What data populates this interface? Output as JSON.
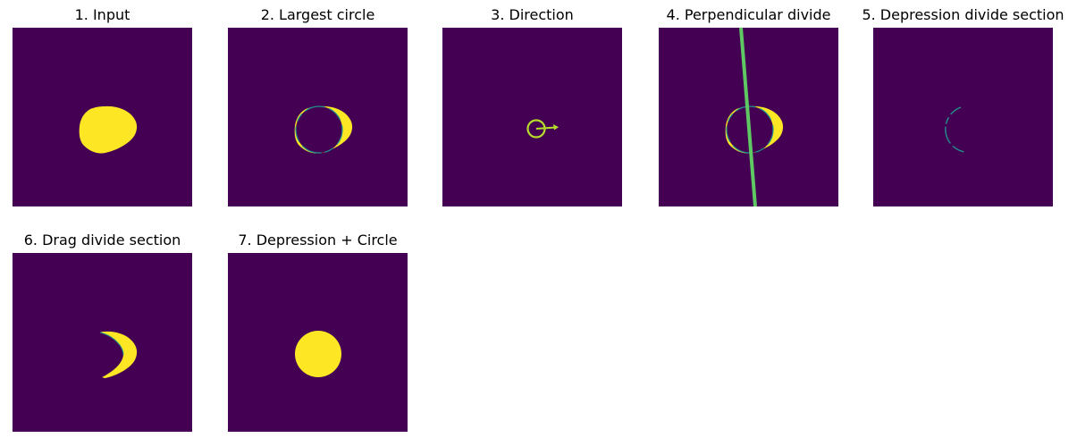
{
  "colors": {
    "background": "#440154",
    "foreground": "#fde725",
    "line": "#5ec962",
    "edge": "#21918c"
  },
  "panels": [
    {
      "title": "1. Input"
    },
    {
      "title": "2. Largest circle"
    },
    {
      "title": "3. Direction"
    },
    {
      "title": "4. Perpendicular divide"
    },
    {
      "title": "5. Depression divide section"
    },
    {
      "title": "6. Drag divide section"
    },
    {
      "title": "7. Depression + Circle"
    }
  ]
}
